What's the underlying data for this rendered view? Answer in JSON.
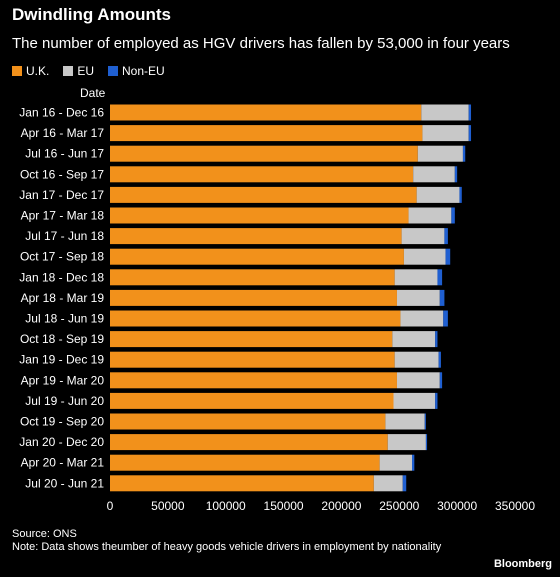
{
  "header": {
    "title": "Dwindling Amounts",
    "subtitle": "The number of employed as HGV drivers has fallen by 53,000 in four years"
  },
  "footer": {
    "source": "Source: ONS",
    "note": "Note: Data shows theumber of heavy goods vehicle drivers in employment by nationality",
    "brand": "Bloomberg"
  },
  "chart_data": {
    "type": "bar",
    "orientation": "horizontal",
    "stacked": true,
    "title": "Dwindling Amounts",
    "subtitle": "The number of employed as HGV drivers has fallen by 53,000 in four years",
    "ylabel": "Date",
    "xlabel": "",
    "xlim": [
      0,
      350000
    ],
    "xticks": [
      0,
      50000,
      100000,
      150000,
      200000,
      250000,
      300000,
      350000
    ],
    "legend_position": "top-left",
    "categories": [
      "Jan 16 - Dec 16",
      "Apr 16 - Mar 17",
      "Jul 16 - Jun 17",
      "Oct 16 - Sep 17",
      "Jan 17 - Dec 17",
      "Apr 17 - Mar 18",
      "Jul 17 - Jun 18",
      "Oct 17 - Sep 18",
      "Jan 18 - Dec 18",
      "Apr 18 - Mar 19",
      "Jul 18 - Jun 19",
      "Oct 18 - Sep 19",
      "Jan 19 - Dec 19",
      "Apr 19 - Mar 20",
      "Jul 19 - Jun 20",
      "Oct 19 - Sep 20",
      "Jan 20 - Dec 20",
      "Apr 20 - Mar 21",
      "Jul 20 - Jun 21"
    ],
    "series": [
      {
        "name": "U.K.",
        "color": "#f2911b",
        "values": [
          269000,
          270000,
          266000,
          262000,
          265000,
          258000,
          252000,
          254000,
          246000,
          248000,
          251000,
          244000,
          246000,
          248000,
          245000,
          238000,
          240000,
          233000,
          228000
        ]
      },
      {
        "name": "EU",
        "color": "#c8c8c8",
        "values": [
          41000,
          40000,
          39000,
          36000,
          37000,
          37000,
          37000,
          36000,
          37000,
          37000,
          37000,
          37000,
          38000,
          37000,
          36000,
          34000,
          33000,
          28000,
          25000
        ]
      },
      {
        "name": "Non-EU",
        "color": "#1f5fd1",
        "values": [
          2000,
          2000,
          2000,
          2000,
          2000,
          3000,
          3000,
          4000,
          4000,
          4000,
          4000,
          2000,
          2000,
          2000,
          2000,
          1000,
          1000,
          2000,
          3000
        ]
      }
    ]
  }
}
